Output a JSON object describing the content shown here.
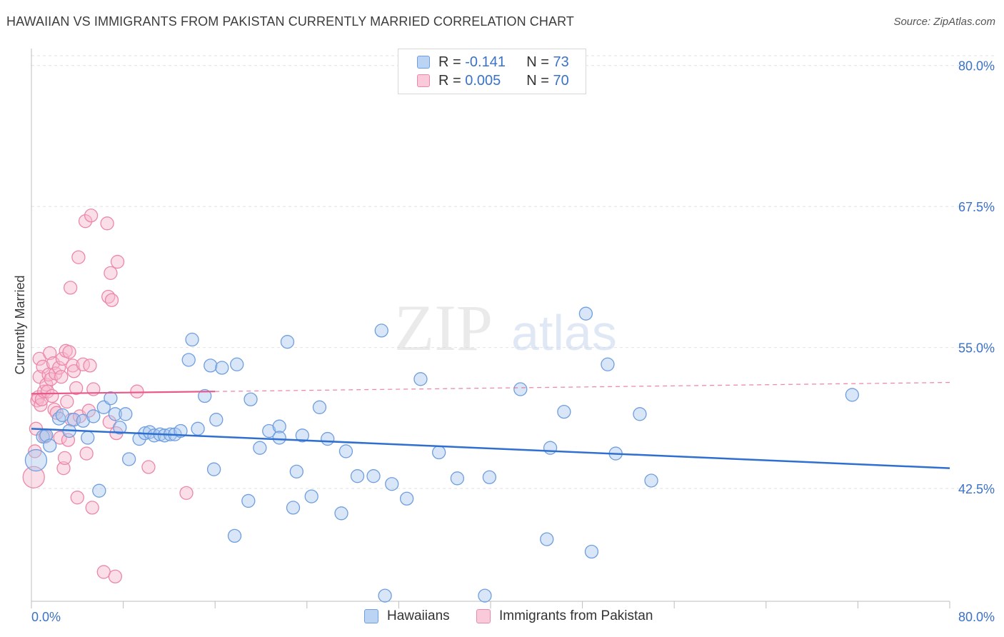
{
  "title": "HAWAIIAN VS IMMIGRANTS FROM PAKISTAN CURRENTLY MARRIED CORRELATION CHART",
  "source": "Source: ZipAtlas.com",
  "watermark": {
    "zip": "ZIP",
    "atlas": "atlas"
  },
  "colors": {
    "blue_fill": "#a9c7ee",
    "blue_stroke": "#6f9ee0",
    "blue_line": "#2f6fd0",
    "pink_fill": "#f7b8cc",
    "pink_stroke": "#ec87a8",
    "pink_line": "#e8588a",
    "axis_text": "#3a72c8",
    "grid": "#e2e2e2"
  },
  "legend": {
    "rows": [
      {
        "r_label": "R =",
        "r_value": "-0.141",
        "n_label": "N =",
        "n_value": "73"
      },
      {
        "r_label": "R =",
        "r_value": "0.005",
        "n_label": "N =",
        "n_value": "70"
      }
    ]
  },
  "bottom_legend": [
    "Hawaiians",
    "Immigrants from Pakistan"
  ],
  "chart_data": {
    "type": "scatter",
    "title": "HAWAIIAN VS IMMIGRANTS FROM PAKISTAN CURRENTLY MARRIED CORRELATION CHART",
    "xlabel": "",
    "ylabel": "Currently Married",
    "xlim": [
      0,
      80
    ],
    "ylim": [
      32.5,
      81.5
    ],
    "x_tick_labels": [
      "0.0%",
      "80.0%"
    ],
    "y_ticks": [
      42.5,
      55.0,
      67.5,
      80.0
    ],
    "y_tick_labels": [
      "42.5%",
      "55.0%",
      "67.5%",
      "80.0%"
    ],
    "grid": true,
    "series": [
      {
        "name": "Hawaiians",
        "r": -0.141,
        "n": 73,
        "trend": {
          "x": [
            0,
            80
          ],
          "y": [
            47.8,
            44.3
          ],
          "dashed_from": null
        },
        "points": [
          [
            0.4,
            45.0,
            2
          ],
          [
            1.0,
            47.1,
            1
          ],
          [
            1.3,
            47.2,
            1
          ],
          [
            1.6,
            46.3,
            1
          ],
          [
            2.4,
            48.7,
            1
          ],
          [
            2.7,
            49.0,
            1
          ],
          [
            3.3,
            47.6,
            1
          ],
          [
            3.7,
            48.6,
            1
          ],
          [
            4.5,
            48.5,
            1
          ],
          [
            4.9,
            47.0,
            1
          ],
          [
            5.4,
            48.9,
            1
          ],
          [
            5.9,
            42.3,
            1
          ],
          [
            6.3,
            49.7,
            1
          ],
          [
            6.9,
            50.5,
            1
          ],
          [
            7.3,
            49.1,
            1
          ],
          [
            7.7,
            47.9,
            1
          ],
          [
            8.2,
            49.1,
            1
          ],
          [
            8.5,
            45.1,
            1
          ],
          [
            9.4,
            46.9,
            1
          ],
          [
            9.9,
            47.4,
            1
          ],
          [
            10.3,
            47.5,
            1
          ],
          [
            10.7,
            47.2,
            1
          ],
          [
            11.2,
            47.3,
            1
          ],
          [
            11.6,
            47.2,
            1
          ],
          [
            12.1,
            47.3,
            1
          ],
          [
            12.5,
            47.3,
            1
          ],
          [
            13.0,
            47.6,
            1
          ],
          [
            13.7,
            53.9,
            1
          ],
          [
            14.0,
            55.7,
            1
          ],
          [
            14.5,
            47.8,
            1
          ],
          [
            15.1,
            50.7,
            1
          ],
          [
            15.6,
            53.4,
            1
          ],
          [
            15.9,
            44.2,
            1
          ],
          [
            16.1,
            48.6,
            1
          ],
          [
            16.6,
            53.2,
            1
          ],
          [
            17.7,
            38.3,
            1
          ],
          [
            17.9,
            53.5,
            1
          ],
          [
            18.9,
            41.4,
            1
          ],
          [
            19.1,
            50.4,
            1
          ],
          [
            19.9,
            46.1,
            1
          ],
          [
            20.7,
            47.6,
            1
          ],
          [
            21.6,
            48.0,
            1
          ],
          [
            21.6,
            47.0,
            1
          ],
          [
            22.3,
            55.5,
            1
          ],
          [
            22.8,
            40.8,
            1
          ],
          [
            23.1,
            44.0,
            1
          ],
          [
            23.6,
            47.2,
            1
          ],
          [
            24.4,
            41.8,
            1
          ],
          [
            25.1,
            49.7,
            1
          ],
          [
            25.8,
            46.9,
            1
          ],
          [
            27.0,
            40.3,
            1
          ],
          [
            27.4,
            45.8,
            1
          ],
          [
            28.4,
            43.6,
            1
          ],
          [
            29.8,
            43.6,
            1
          ],
          [
            30.5,
            56.5,
            1
          ],
          [
            30.8,
            33.0,
            1
          ],
          [
            31.4,
            42.9,
            1
          ],
          [
            32.7,
            41.6,
            1
          ],
          [
            33.9,
            52.2,
            1
          ],
          [
            35.5,
            45.7,
            1
          ],
          [
            37.1,
            43.4,
            1
          ],
          [
            39.5,
            33.0,
            1
          ],
          [
            39.9,
            43.5,
            1
          ],
          [
            42.6,
            51.3,
            1
          ],
          [
            44.9,
            38.0,
            1
          ],
          [
            45.2,
            46.1,
            1
          ],
          [
            46.4,
            49.3,
            1
          ],
          [
            48.3,
            58.0,
            1
          ],
          [
            48.8,
            36.9,
            1
          ],
          [
            50.2,
            53.5,
            1
          ],
          [
            50.9,
            45.6,
            1
          ],
          [
            53.0,
            49.1,
            1
          ],
          [
            54.0,
            43.2,
            1
          ],
          [
            71.5,
            50.8,
            1
          ]
        ]
      },
      {
        "name": "Immigrants from Pakistan",
        "r": 0.005,
        "n": 70,
        "trend": {
          "x": [
            0,
            80
          ],
          "y": [
            50.9,
            51.9
          ],
          "dashed_from": 16
        },
        "points": [
          [
            0.2,
            43.5,
            2
          ],
          [
            0.3,
            45.8,
            1
          ],
          [
            0.4,
            47.8,
            1
          ],
          [
            0.5,
            50.3,
            1
          ],
          [
            0.6,
            50.6,
            1
          ],
          [
            0.7,
            52.4,
            1
          ],
          [
            0.7,
            54.0,
            1
          ],
          [
            0.8,
            49.9,
            1
          ],
          [
            0.9,
            50.4,
            1
          ],
          [
            1.0,
            53.3,
            1
          ],
          [
            1.1,
            51.1,
            1
          ],
          [
            1.2,
            47.1,
            1
          ],
          [
            1.3,
            51.7,
            1
          ],
          [
            1.4,
            51.1,
            1
          ],
          [
            1.5,
            52.6,
            1
          ],
          [
            1.6,
            54.5,
            1
          ],
          [
            1.7,
            52.2,
            1
          ],
          [
            1.8,
            50.7,
            1
          ],
          [
            1.9,
            53.6,
            1
          ],
          [
            2.0,
            49.5,
            1
          ],
          [
            2.1,
            52.7,
            1
          ],
          [
            2.2,
            49.2,
            1
          ],
          [
            2.4,
            53.2,
            1
          ],
          [
            2.5,
            47.0,
            1
          ],
          [
            2.6,
            52.4,
            1
          ],
          [
            2.7,
            54.0,
            1
          ],
          [
            2.8,
            44.3,
            1
          ],
          [
            2.9,
            45.2,
            1
          ],
          [
            3.0,
            54.7,
            1
          ],
          [
            3.1,
            50.2,
            1
          ],
          [
            3.2,
            46.8,
            1
          ],
          [
            3.3,
            54.6,
            1
          ],
          [
            3.4,
            60.3,
            1
          ],
          [
            3.5,
            48.6,
            1
          ],
          [
            3.6,
            53.4,
            1
          ],
          [
            3.7,
            52.9,
            1
          ],
          [
            3.9,
            51.4,
            1
          ],
          [
            4.0,
            41.7,
            1
          ],
          [
            4.1,
            63.0,
            1
          ],
          [
            4.2,
            48.9,
            1
          ],
          [
            4.5,
            53.5,
            1
          ],
          [
            4.7,
            66.2,
            1
          ],
          [
            4.8,
            45.6,
            1
          ],
          [
            5.0,
            49.4,
            1
          ],
          [
            5.1,
            53.4,
            1
          ],
          [
            5.2,
            66.7,
            1
          ],
          [
            5.3,
            40.8,
            1
          ],
          [
            5.4,
            51.3,
            1
          ],
          [
            6.3,
            35.1,
            1
          ],
          [
            6.6,
            66.0,
            1
          ],
          [
            6.7,
            59.5,
            1
          ],
          [
            6.8,
            48.4,
            1
          ],
          [
            6.9,
            61.6,
            1
          ],
          [
            7.0,
            59.2,
            1
          ],
          [
            7.3,
            34.7,
            1
          ],
          [
            7.4,
            47.4,
            1
          ],
          [
            7.5,
            62.6,
            1
          ],
          [
            9.2,
            51.1,
            1
          ],
          [
            10.2,
            44.4,
            1
          ],
          [
            13.5,
            42.1,
            1
          ]
        ]
      }
    ]
  }
}
